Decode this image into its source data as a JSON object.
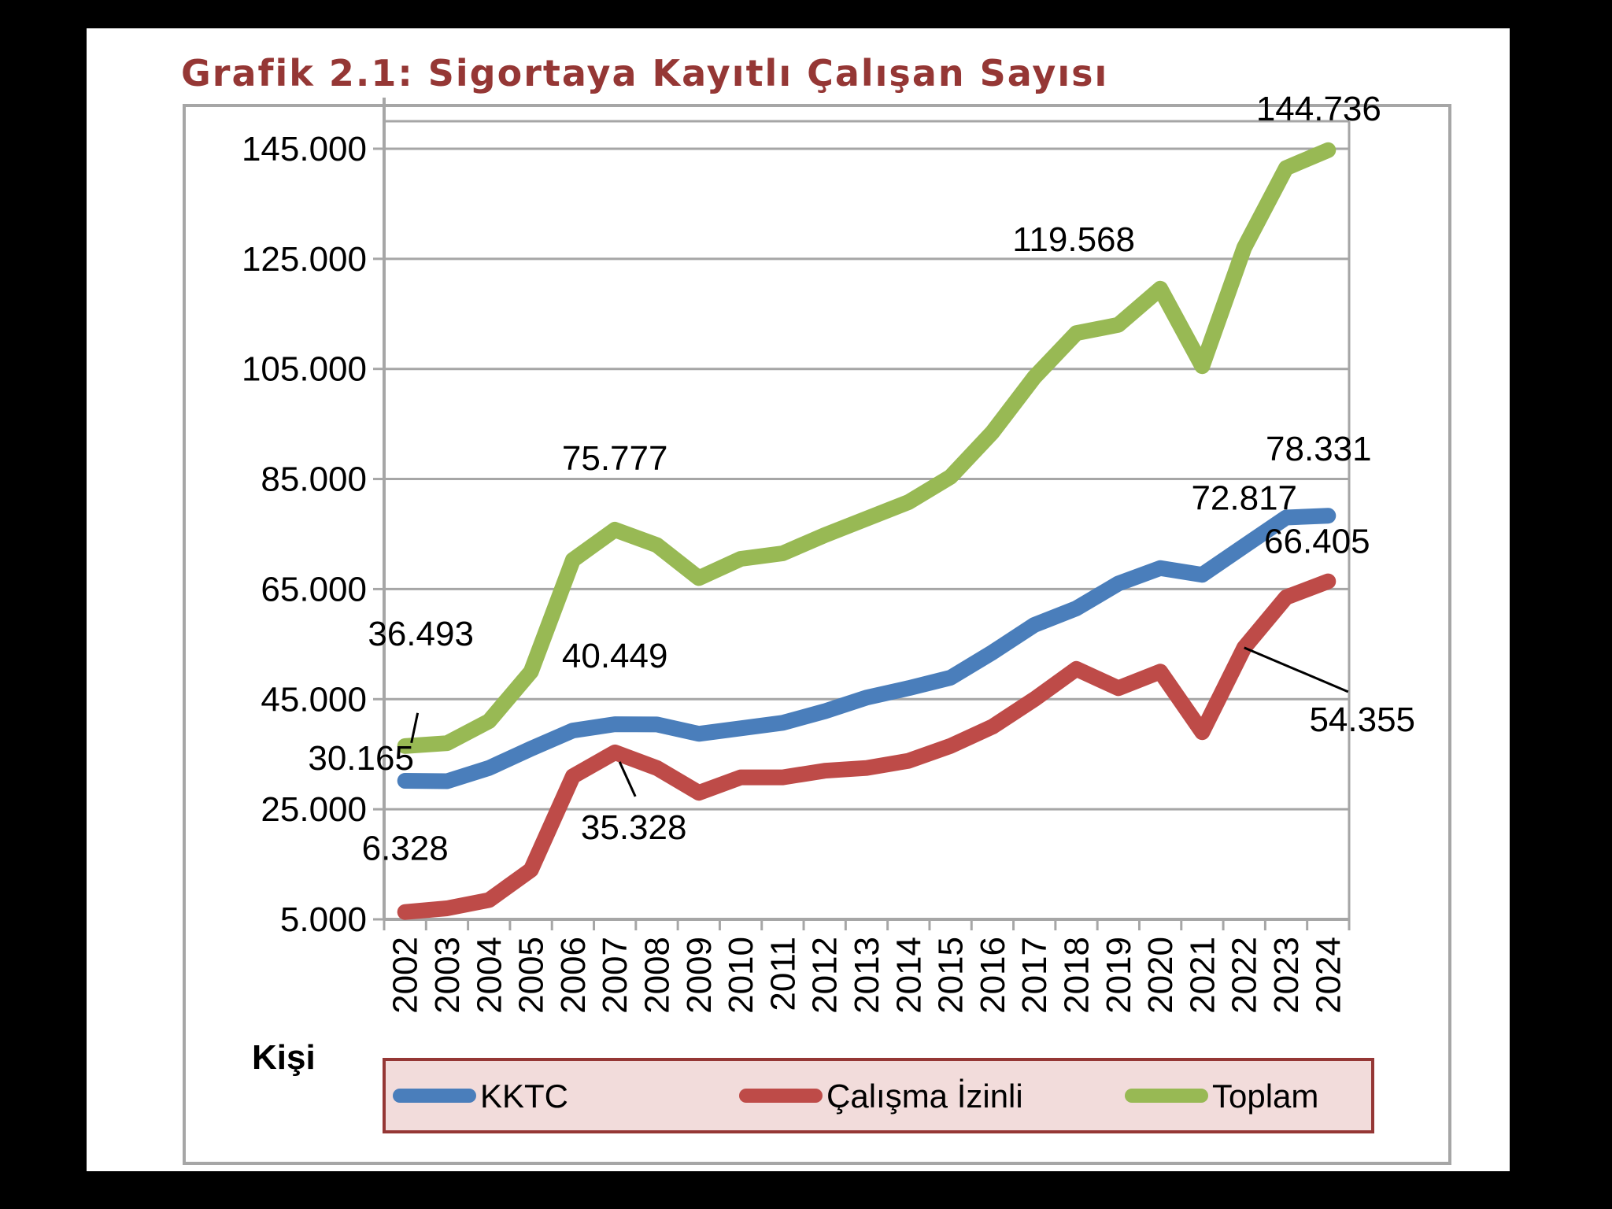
{
  "chart_title": "Grafik 2.1: Sigortaya Kayıtlı Çalışan Sayısı",
  "colors": {
    "kktc": "#4a7ebb",
    "calisma_izinli": "#be4b48",
    "toplam": "#98b954",
    "title": "#953735",
    "legend_border": "#953735",
    "legend_fill": "#f2dcdb",
    "grid": "#a6a6a6"
  },
  "chart_data": {
    "type": "line",
    "title": "Grafik 2.1: Sigortaya Kayıtlı Çalışan Sayısı",
    "ylabel": "Kişi",
    "xlabel": "",
    "ylim": [
      5000,
      150000
    ],
    "yticks": [
      5000,
      25000,
      45000,
      65000,
      85000,
      105000,
      125000,
      145000
    ],
    "ytick_labels": [
      "5.000",
      "25.000",
      "45.000",
      "65.000",
      "85.000",
      "105.000",
      "125.000",
      "145.000"
    ],
    "grid": true,
    "legend_position": "bottom",
    "x": [
      "2002",
      "2003",
      "2004",
      "2005",
      "2006",
      "2007",
      "2008",
      "2009",
      "2010",
      "2011",
      "2012",
      "2013",
      "2014",
      "2015",
      "2016",
      "2017",
      "2018",
      "2019",
      "2020",
      "2021",
      "2022",
      "2023",
      "2024"
    ],
    "series": [
      {
        "name": "KKTC",
        "color": "#4a7ebb",
        "values": [
          30165,
          30100,
          32500,
          36000,
          39300,
          40449,
          40400,
          38700,
          39700,
          40700,
          42800,
          45300,
          47000,
          48900,
          53500,
          58500,
          61500,
          66000,
          68800,
          67600,
          72817,
          78000,
          78331
        ]
      },
      {
        "name": "Çalışma İzinli",
        "color": "#be4b48",
        "values": [
          6328,
          7000,
          8500,
          14000,
          31000,
          35328,
          32500,
          28000,
          30800,
          30800,
          32000,
          32500,
          33800,
          36500,
          40000,
          45000,
          50500,
          47000,
          50000,
          39000,
          54355,
          63500,
          66405
        ]
      },
      {
        "name": "Toplam",
        "color": "#98b954",
        "values": [
          36493,
          37000,
          41000,
          50000,
          70300,
          75777,
          73000,
          67000,
          70500,
          71500,
          74800,
          77800,
          80800,
          85400,
          93500,
          103500,
          111500,
          113000,
          119568,
          105500,
          127000,
          141500,
          144736
        ]
      }
    ],
    "data_labels": [
      {
        "text": "36.493",
        "series": "Toplam",
        "x": "2002"
      },
      {
        "text": "75.777",
        "series": "Toplam",
        "x": "2007"
      },
      {
        "text": "119.568",
        "series": "Toplam",
        "x": "2020"
      },
      {
        "text": "144.736",
        "series": "Toplam",
        "x": "2024"
      },
      {
        "text": "30.165",
        "series": "KKTC",
        "x": "2002"
      },
      {
        "text": "40.449",
        "series": "KKTC",
        "x": "2007"
      },
      {
        "text": "72.817",
        "series": "KKTC",
        "x": "2022"
      },
      {
        "text": "78.331",
        "series": "KKTC",
        "x": "2024"
      },
      {
        "text": "6.328",
        "series": "Çalışma İzinli",
        "x": "2002"
      },
      {
        "text": "35.328",
        "series": "Çalışma İzinli",
        "x": "2007"
      },
      {
        "text": "54.355",
        "series": "Çalışma İzinli",
        "x": "2022"
      },
      {
        "text": "66.405",
        "series": "Çalışma İzinli",
        "x": "2024"
      }
    ]
  }
}
